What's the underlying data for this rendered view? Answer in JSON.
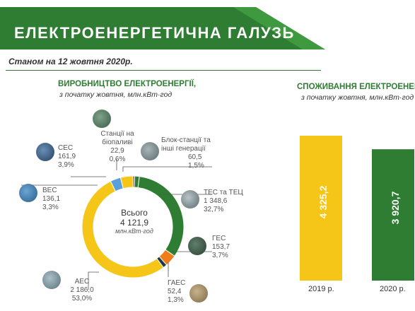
{
  "header": {
    "title": "ЕЛЕКТРОЕНЕРГЕТИЧНА ГАЛУЗЬ",
    "date": "Станом на 12 жовтня 2020р."
  },
  "production": {
    "title": "ВИРОБНИЦТВО ЕЛЕКТРОЕНЕРГІЇ,",
    "subtitle": "з початку жовтня, млн.кВт·год",
    "center_label": "Всього",
    "center_value": "4 121,9",
    "center_unit": "млн.кВт·год"
  },
  "consumption": {
    "title": "СПОЖИВАННЯ ЕЛЕКТРОЕНЕРГ",
    "subtitle": "з початку жовтня, млн.кВт·год"
  },
  "labels": {
    "bio": {
      "name1": "Станції на",
      "name2": "біопаливі",
      "value": "22,9",
      "pct": "0,6%"
    },
    "block": {
      "name1": "Блок-станції та",
      "name2": "інші генерації",
      "value": "60,5",
      "pct": "1,5%"
    },
    "tes": {
      "name1": "ТЕС та ТЕЦ",
      "value": "1 348,6",
      "pct": "32,7%"
    },
    "ges": {
      "name1": "ГЕС",
      "value": "153,7",
      "pct": "3,7%"
    },
    "gaes": {
      "name1": "ГАЕС",
      "value": "52,4",
      "pct": "1,3%"
    },
    "aes": {
      "name1": "АЕС",
      "value": "2 186,0",
      "pct": "53,0%"
    },
    "ves": {
      "name1": "ВЕС",
      "value": "136,1",
      "pct": "3,3%"
    },
    "ses": {
      "name1": "СЕС",
      "value": "161,9",
      "pct": "3,9%"
    }
  },
  "bars": {
    "y2019": {
      "value": "4 325,2",
      "year": "2019 р."
    },
    "y2020": {
      "value": "3 920,7",
      "year": "2020 р."
    }
  },
  "colors": {
    "banner": "#2e7d32",
    "green": "#2e7d32",
    "yellow": "#f5c518",
    "orange": "#f07d1a",
    "blue": "#5aa0d8",
    "dark": "#1f3a44",
    "brown": "#8a4b2a"
  },
  "chart_data": [
    {
      "type": "pie",
      "title": "ВИРОБНИЦТВО ЕЛЕКТРОЕНЕРГІЇ,",
      "subtitle": "з початку жовтня, млн.кВт·год",
      "total": 4121.9,
      "slices": [
        {
          "name": "ТЕС та ТЕЦ",
          "value": 1348.6,
          "pct": 32.7,
          "color": "#2e7d32"
        },
        {
          "name": "ГЕС",
          "value": 153.7,
          "pct": 3.7,
          "color": "#f07d1a"
        },
        {
          "name": "ГАЕС",
          "value": 52.4,
          "pct": 1.3,
          "color": "#1f3a44"
        },
        {
          "name": "АЕС",
          "value": 2186.0,
          "pct": 53.0,
          "color": "#f5c518"
        },
        {
          "name": "ВЕС",
          "value": 136.1,
          "pct": 3.3,
          "color": "#5aa0d8"
        },
        {
          "name": "СЕС",
          "value": 161.9,
          "pct": 3.9,
          "color": "#f5c518"
        },
        {
          "name": "Станції на біопаливі",
          "value": 22.9,
          "pct": 0.6,
          "color": "#8a4b2a"
        },
        {
          "name": "Блок-станції та інші генерації",
          "value": 60.5,
          "pct": 1.5,
          "color": "#2e7d32"
        }
      ]
    },
    {
      "type": "bar",
      "title": "СПОЖИВАННЯ ЕЛЕКТРОЕНЕРГ",
      "categories": [
        "2019 р.",
        "2020 р."
      ],
      "values": [
        4325.2,
        3920.7
      ],
      "colors": [
        "#f5c518",
        "#2e7d32"
      ]
    }
  ]
}
